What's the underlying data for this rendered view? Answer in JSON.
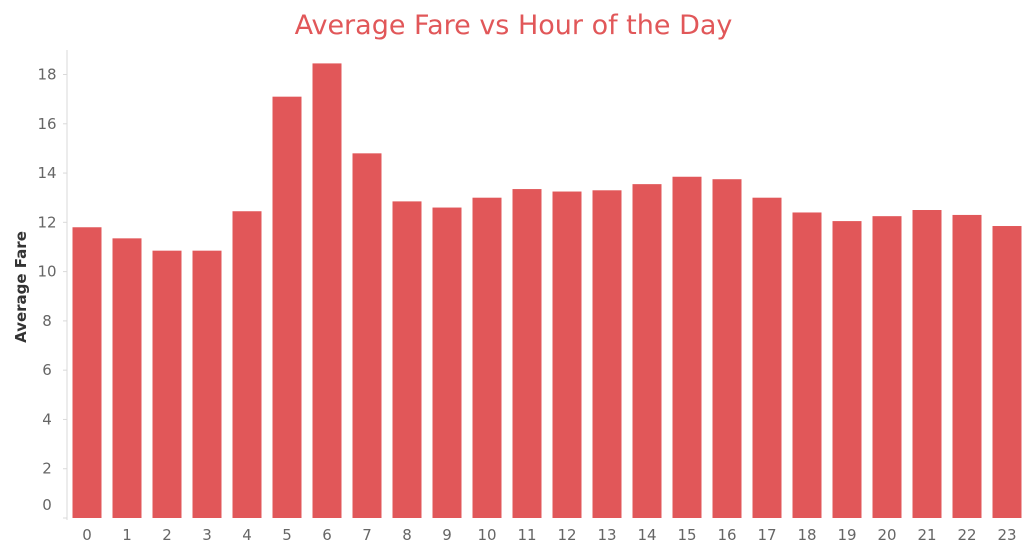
{
  "chart_data": {
    "type": "bar",
    "title": "Average Fare vs Hour of the Day",
    "xlabel": "",
    "ylabel": "Average Fare",
    "categories": [
      "0",
      "1",
      "2",
      "3",
      "4",
      "5",
      "6",
      "7",
      "8",
      "9",
      "10",
      "11",
      "12",
      "13",
      "14",
      "15",
      "16",
      "17",
      "18",
      "19",
      "20",
      "21",
      "22",
      "23"
    ],
    "values": [
      11.8,
      11.35,
      10.85,
      10.85,
      12.45,
      17.1,
      18.45,
      14.8,
      12.85,
      12.6,
      13.0,
      13.35,
      13.25,
      13.3,
      13.55,
      13.85,
      13.75,
      13.0,
      12.4,
      12.05,
      12.25,
      12.5,
      12.3,
      11.85
    ],
    "yticks": [
      0,
      2,
      4,
      6,
      8,
      10,
      12,
      14,
      16,
      18
    ],
    "ylim": [
      0,
      19.4
    ],
    "grid": false,
    "bar_color": "#e15759",
    "title_color": "#e15759"
  }
}
